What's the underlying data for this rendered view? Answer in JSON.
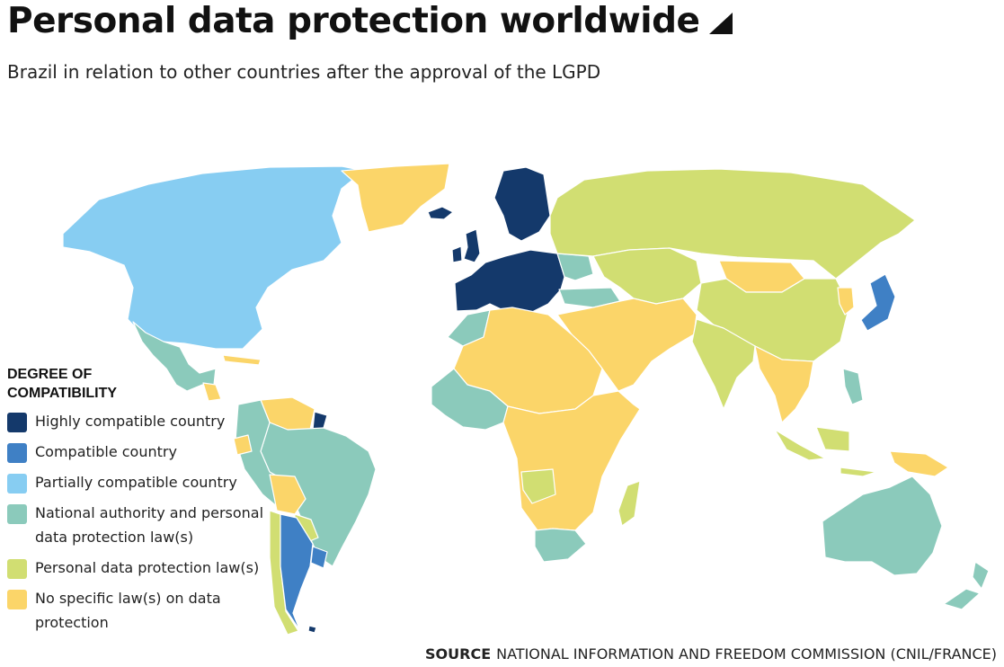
{
  "header": {
    "title": "Personal data protection worldwide",
    "subtitle": "Brazil in relation to other countries after the approval of the LGPD"
  },
  "legend": {
    "heading": "DEGREE OF\nCOMPATIBILITY",
    "items": [
      {
        "key": "highly",
        "label": "Highly compatible country",
        "color": "#14396b"
      },
      {
        "key": "compatible",
        "label": "Compatible country",
        "color": "#3f80c5"
      },
      {
        "key": "partial",
        "label": "Partially compatible country",
        "color": "#87cdf2"
      },
      {
        "key": "authority",
        "label": "National authority and personal data protection law(s)",
        "color": "#8bcabb"
      },
      {
        "key": "law",
        "label": "Personal data protection law(s)",
        "color": "#d1de72"
      },
      {
        "key": "none",
        "label": "No specific law(s) on data protection",
        "color": "#fbd569"
      }
    ]
  },
  "source": {
    "key": "SOURCE",
    "text": "NATIONAL INFORMATION AND FREEDOM COMMISSION (CNIL/FRANCE)"
  },
  "map": {
    "regions": [
      {
        "name": "canada-usa",
        "category": "partial"
      },
      {
        "name": "greenland",
        "category": "none"
      },
      {
        "name": "iceland",
        "category": "highly"
      },
      {
        "name": "mexico-central-america",
        "category": "authority"
      },
      {
        "name": "caribbean",
        "category": "none"
      },
      {
        "name": "venezuela-guyana",
        "category": "none"
      },
      {
        "name": "french-guiana",
        "category": "highly"
      },
      {
        "name": "brazil",
        "category": "authority"
      },
      {
        "name": "colombia-peru",
        "category": "authority"
      },
      {
        "name": "ecuador",
        "category": "none"
      },
      {
        "name": "bolivia",
        "category": "none"
      },
      {
        "name": "paraguay",
        "category": "law"
      },
      {
        "name": "uruguay",
        "category": "compatible"
      },
      {
        "name": "chile",
        "category": "law"
      },
      {
        "name": "argentina",
        "category": "compatible"
      },
      {
        "name": "falklands",
        "category": "highly"
      },
      {
        "name": "western-europe",
        "category": "highly"
      },
      {
        "name": "uk-ireland",
        "category": "highly"
      },
      {
        "name": "scandinavia",
        "category": "highly"
      },
      {
        "name": "ukraine-balkans",
        "category": "authority"
      },
      {
        "name": "turkey",
        "category": "authority"
      },
      {
        "name": "russia",
        "category": "law"
      },
      {
        "name": "central-asia",
        "category": "law"
      },
      {
        "name": "mongolia",
        "category": "none"
      },
      {
        "name": "china",
        "category": "law"
      },
      {
        "name": "korea",
        "category": "none"
      },
      {
        "name": "japan",
        "category": "compatible"
      },
      {
        "name": "middle-east",
        "category": "none"
      },
      {
        "name": "india",
        "category": "law"
      },
      {
        "name": "southeast-asia",
        "category": "none"
      },
      {
        "name": "indonesia",
        "category": "law"
      },
      {
        "name": "philippines",
        "category": "authority"
      },
      {
        "name": "papua-new-guinea",
        "category": "none"
      },
      {
        "name": "north-africa",
        "category": "none"
      },
      {
        "name": "morocco",
        "category": "authority"
      },
      {
        "name": "west-africa",
        "category": "authority"
      },
      {
        "name": "central-east-africa",
        "category": "none"
      },
      {
        "name": "angola",
        "category": "law"
      },
      {
        "name": "south-africa",
        "category": "authority"
      },
      {
        "name": "madagascar",
        "category": "law"
      },
      {
        "name": "australia",
        "category": "authority"
      },
      {
        "name": "new-zealand",
        "category": "authority"
      }
    ]
  }
}
